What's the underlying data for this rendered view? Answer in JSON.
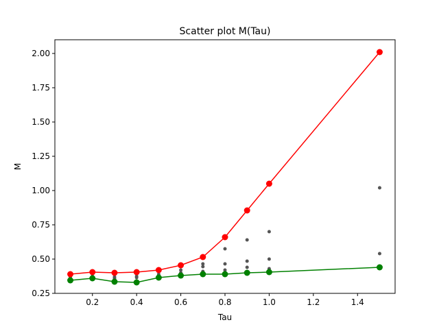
{
  "chart_data": {
    "type": "line",
    "title": "Scatter plot M(Tau)",
    "xlabel": "Tau",
    "ylabel": "M",
    "xlim": [
      0.03,
      1.57
    ],
    "ylim": [
      0.25,
      2.1
    ],
    "xticks": [
      0.2,
      0.4,
      0.6,
      0.8,
      1.0,
      1.2,
      1.4
    ],
    "xtick_labels": [
      "0.2",
      "0.4",
      "0.6",
      "0.8",
      "1.0",
      "1.2",
      "1.4"
    ],
    "yticks": [
      0.25,
      0.5,
      0.75,
      1.0,
      1.25,
      1.5,
      1.75,
      2.0
    ],
    "ytick_labels": [
      "0.25",
      "0.50",
      "0.75",
      "1.00",
      "1.25",
      "1.50",
      "1.75",
      "2.00"
    ],
    "grid": false,
    "legend": "none",
    "series": [
      {
        "style": "line-marker",
        "color": "#ff0000",
        "x": [
          0.1,
          0.2,
          0.3,
          0.4,
          0.5,
          0.6,
          0.7,
          0.8,
          0.9,
          1.0,
          1.5
        ],
        "y": [
          0.39,
          0.405,
          0.4,
          0.405,
          0.42,
          0.455,
          0.515,
          0.66,
          0.855,
          1.05,
          2.01
        ]
      },
      {
        "style": "line-marker",
        "color": "#008000",
        "x": [
          0.1,
          0.2,
          0.3,
          0.4,
          0.5,
          0.6,
          0.7,
          0.8,
          0.9,
          1.0,
          1.5
        ],
        "y": [
          0.345,
          0.36,
          0.335,
          0.33,
          0.365,
          0.38,
          0.39,
          0.39,
          0.4,
          0.405,
          0.44
        ]
      },
      {
        "style": "scatter",
        "color": "#555555",
        "x": [
          0.1,
          0.2,
          0.3,
          0.3,
          0.4,
          0.4,
          0.5,
          0.6,
          0.6,
          0.7,
          0.7,
          0.7,
          0.8,
          0.8,
          0.8,
          0.9,
          0.9,
          0.9,
          0.9,
          1.0,
          1.0,
          1.0,
          1.0,
          1.5,
          1.5
        ],
        "y": [
          0.37,
          0.375,
          0.36,
          0.37,
          0.365,
          0.375,
          0.39,
          0.4,
          0.42,
          0.41,
          0.445,
          0.465,
          0.42,
          0.465,
          0.575,
          0.405,
          0.44,
          0.485,
          0.64,
          0.42,
          0.43,
          0.5,
          0.7,
          0.54,
          1.02
        ]
      }
    ]
  }
}
